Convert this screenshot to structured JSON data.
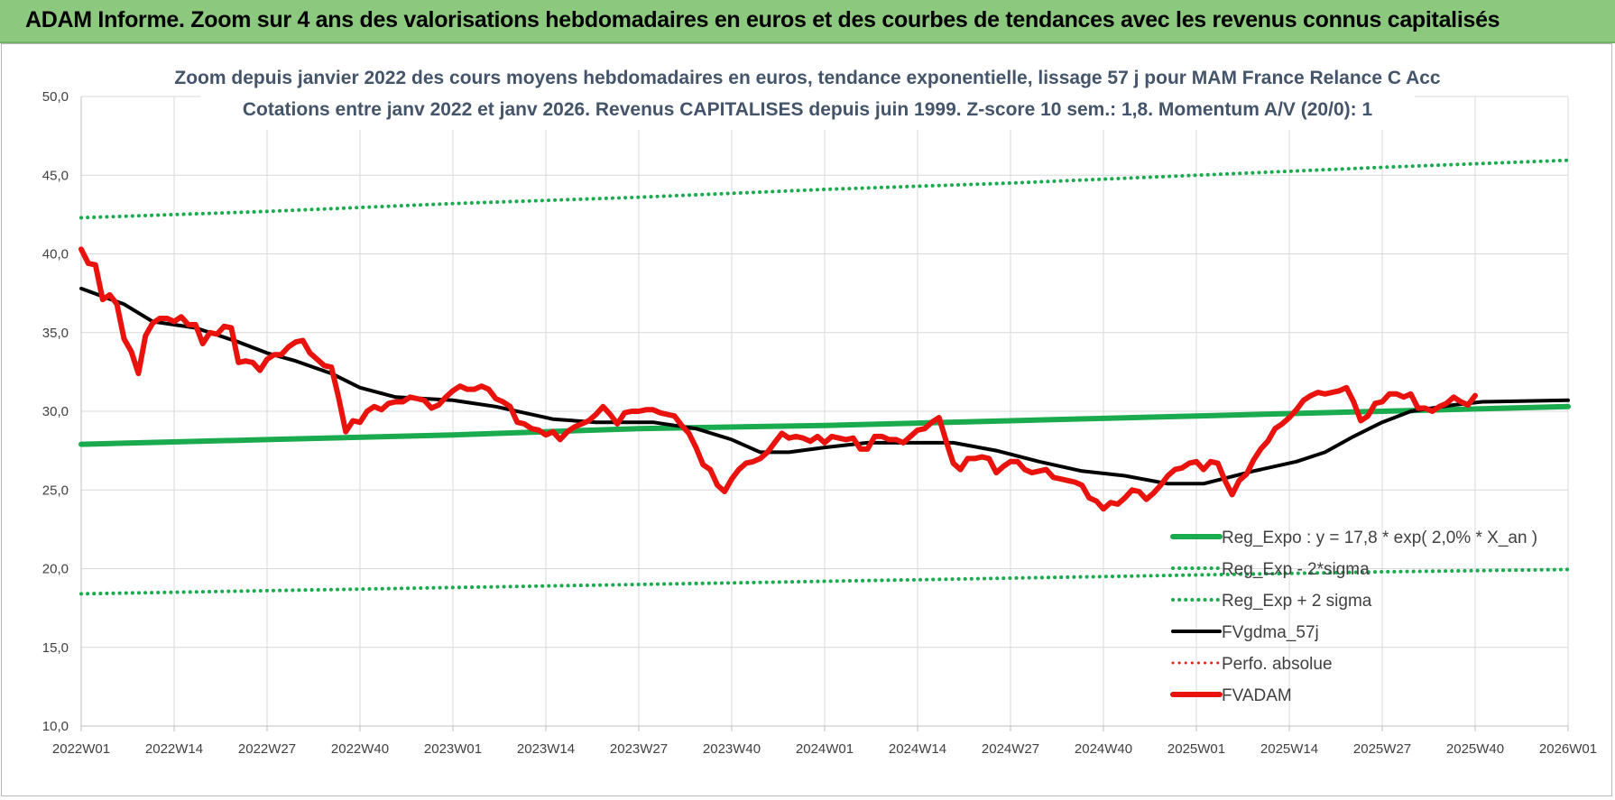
{
  "banner": {
    "title": "ADAM Informe. Zoom sur 4 ans des valorisations hebdomadaires en euros et des courbes de tendances avec les revenus connus capitalisés"
  },
  "chart_data": {
    "type": "line",
    "title": "Zoom depuis janvier 2022 des cours moyens hebdomadaires en euros, tendance exponentielle, lissage 57 j pour MAM France Relance C Acc",
    "subtitle": "Cotations entre janv 2022 et janv 2026. Revenus CAPITALISES depuis juin 1999. Z-score 10 sem.: 1,8. Momentum A/V (20/0): 1",
    "ylim": [
      10,
      50
    ],
    "xlim": [
      0,
      208
    ],
    "yticks": [
      "10,0",
      "15,0",
      "20,0",
      "25,0",
      "30,0",
      "35,0",
      "40,0",
      "45,0",
      "50,0"
    ],
    "xticks": [
      {
        "x": 0,
        "label": "2022W01"
      },
      {
        "x": 13,
        "label": "2022W14"
      },
      {
        "x": 26,
        "label": "2022W27"
      },
      {
        "x": 39,
        "label": "2022W40"
      },
      {
        "x": 52,
        "label": "2023W01"
      },
      {
        "x": 65,
        "label": "2023W14"
      },
      {
        "x": 78,
        "label": "2023W27"
      },
      {
        "x": 91,
        "label": "2023W40"
      },
      {
        "x": 104,
        "label": "2024W01"
      },
      {
        "x": 117,
        "label": "2024W14"
      },
      {
        "x": 130,
        "label": "2024W27"
      },
      {
        "x": 143,
        "label": "2024W40"
      },
      {
        "x": 156,
        "label": "2025W01"
      },
      {
        "x": 169,
        "label": "2025W14"
      },
      {
        "x": 182,
        "label": "2025W27"
      },
      {
        "x": 195,
        "label": "2025W40"
      },
      {
        "x": 208,
        "label": "2026W01"
      }
    ],
    "grid": true,
    "legend_position": "bottom-right",
    "series": [
      {
        "name": "Reg_Expo : y = 17,8 * exp( 2,0% *  X_an )",
        "color": "#1aab4f",
        "style": "solid",
        "width": 6,
        "points": [
          [
            0,
            27.9
          ],
          [
            26,
            28.2
          ],
          [
            52,
            28.5
          ],
          [
            78,
            28.9
          ],
          [
            104,
            29.1
          ],
          [
            130,
            29.4
          ],
          [
            156,
            29.7
          ],
          [
            182,
            30.0
          ],
          [
            208,
            30.3
          ]
        ]
      },
      {
        "name": "Reg_Exp - 2*sigma",
        "color": "#1aab4f",
        "style": "dotted",
        "width": 4,
        "points": [
          [
            0,
            18.4
          ],
          [
            26,
            18.6
          ],
          [
            52,
            18.8
          ],
          [
            78,
            19.0
          ],
          [
            104,
            19.2
          ],
          [
            130,
            19.4
          ],
          [
            156,
            19.6
          ],
          [
            182,
            19.8
          ],
          [
            208,
            19.95
          ]
        ]
      },
      {
        "name": "Reg_Exp + 2 sigma",
        "color": "#1aab4f",
        "style": "dotted",
        "width": 4,
        "points": [
          [
            0,
            42.3
          ],
          [
            26,
            42.7
          ],
          [
            52,
            43.2
          ],
          [
            78,
            43.6
          ],
          [
            104,
            44.1
          ],
          [
            130,
            44.5
          ],
          [
            156,
            45.0
          ],
          [
            182,
            45.5
          ],
          [
            208,
            45.95
          ]
        ]
      },
      {
        "name": "FVgdma_57j",
        "color": "#000000",
        "style": "solid",
        "width": 4,
        "points": [
          [
            0,
            37.8
          ],
          [
            6,
            36.8
          ],
          [
            10,
            35.7
          ],
          [
            16,
            35.3
          ],
          [
            22,
            34.4
          ],
          [
            26,
            33.7
          ],
          [
            30,
            33.2
          ],
          [
            35,
            32.4
          ],
          [
            39,
            31.5
          ],
          [
            44,
            30.9
          ],
          [
            52,
            30.7
          ],
          [
            58,
            30.3
          ],
          [
            66,
            29.5
          ],
          [
            72,
            29.3
          ],
          [
            80,
            29.3
          ],
          [
            86,
            28.9
          ],
          [
            91,
            28.2
          ],
          [
            95,
            27.4
          ],
          [
            99,
            27.4
          ],
          [
            104,
            27.7
          ],
          [
            110,
            28.0
          ],
          [
            122,
            28.0
          ],
          [
            128,
            27.5
          ],
          [
            134,
            26.8
          ],
          [
            140,
            26.2
          ],
          [
            146,
            25.9
          ],
          [
            152,
            25.4
          ],
          [
            157,
            25.4
          ],
          [
            164,
            26.2
          ],
          [
            170,
            26.8
          ],
          [
            174,
            27.4
          ],
          [
            178,
            28.4
          ],
          [
            182,
            29.3
          ],
          [
            186,
            30.0
          ],
          [
            192,
            30.4
          ],
          [
            196,
            30.6
          ],
          [
            208,
            30.7
          ]
        ]
      },
      {
        "name": "Perfo. absolue",
        "color": "#e1221a",
        "style": "dotted",
        "width": 3,
        "points": []
      },
      {
        "name": "FVADAM",
        "color": "#e9120d",
        "style": "solid",
        "width": 6,
        "points": [
          [
            0,
            40.3
          ],
          [
            1,
            39.4
          ],
          [
            2,
            39.3
          ],
          [
            3,
            37.1
          ],
          [
            4,
            37.4
          ],
          [
            5,
            36.8
          ],
          [
            6,
            34.6
          ],
          [
            7,
            33.8
          ],
          [
            8,
            32.4
          ],
          [
            9,
            34.8
          ],
          [
            10,
            35.6
          ],
          [
            11,
            35.9
          ],
          [
            12,
            35.9
          ],
          [
            13,
            35.7
          ],
          [
            14,
            36.0
          ],
          [
            15,
            35.5
          ],
          [
            16,
            35.5
          ],
          [
            17,
            34.3
          ],
          [
            18,
            35.0
          ],
          [
            19,
            34.9
          ],
          [
            20,
            35.4
          ],
          [
            21,
            35.3
          ],
          [
            22,
            33.1
          ],
          [
            23,
            33.2
          ],
          [
            24,
            33.1
          ],
          [
            25,
            32.6
          ],
          [
            26,
            33.3
          ],
          [
            27,
            33.6
          ],
          [
            28,
            33.6
          ],
          [
            29,
            34.1
          ],
          [
            30,
            34.4
          ],
          [
            31,
            34.5
          ],
          [
            32,
            33.7
          ],
          [
            33,
            33.3
          ],
          [
            34,
            32.9
          ],
          [
            35,
            32.8
          ],
          [
            36,
            30.9
          ],
          [
            37,
            28.7
          ],
          [
            38,
            29.4
          ],
          [
            39,
            29.3
          ],
          [
            40,
            30.0
          ],
          [
            41,
            30.3
          ],
          [
            42,
            30.1
          ],
          [
            43,
            30.5
          ],
          [
            44,
            30.6
          ],
          [
            45,
            30.6
          ],
          [
            46,
            30.9
          ],
          [
            47,
            30.8
          ],
          [
            48,
            30.7
          ],
          [
            49,
            30.2
          ],
          [
            50,
            30.4
          ],
          [
            51,
            30.9
          ],
          [
            52,
            31.3
          ],
          [
            53,
            31.6
          ],
          [
            54,
            31.4
          ],
          [
            55,
            31.4
          ],
          [
            56,
            31.6
          ],
          [
            57,
            31.4
          ],
          [
            58,
            30.8
          ],
          [
            59,
            30.6
          ],
          [
            60,
            30.3
          ],
          [
            61,
            29.3
          ],
          [
            62,
            29.2
          ],
          [
            63,
            28.9
          ],
          [
            64,
            28.8
          ],
          [
            65,
            28.5
          ],
          [
            66,
            28.7
          ],
          [
            67,
            28.2
          ],
          [
            68,
            28.7
          ],
          [
            69,
            29.0
          ],
          [
            70,
            29.2
          ],
          [
            71,
            29.4
          ],
          [
            72,
            29.8
          ],
          [
            73,
            30.3
          ],
          [
            74,
            29.8
          ],
          [
            75,
            29.2
          ],
          [
            76,
            29.9
          ],
          [
            77,
            30.0
          ],
          [
            78,
            30.0
          ],
          [
            79,
            30.1
          ],
          [
            80,
            30.1
          ],
          [
            81,
            29.9
          ],
          [
            82,
            29.8
          ],
          [
            83,
            29.7
          ],
          [
            84,
            29.1
          ],
          [
            85,
            28.6
          ],
          [
            86,
            27.7
          ],
          [
            87,
            26.6
          ],
          [
            88,
            26.3
          ],
          [
            89,
            25.3
          ],
          [
            90,
            24.9
          ],
          [
            91,
            25.7
          ],
          [
            92,
            26.3
          ],
          [
            93,
            26.7
          ],
          [
            94,
            26.8
          ],
          [
            95,
            27.0
          ],
          [
            96,
            27.4
          ],
          [
            97,
            28.0
          ],
          [
            98,
            28.6
          ],
          [
            99,
            28.3
          ],
          [
            100,
            28.4
          ],
          [
            101,
            28.3
          ],
          [
            102,
            28.1
          ],
          [
            103,
            28.4
          ],
          [
            104,
            28.0
          ],
          [
            105,
            28.4
          ],
          [
            106,
            28.3
          ],
          [
            107,
            28.2
          ],
          [
            108,
            28.3
          ],
          [
            109,
            27.6
          ],
          [
            110,
            27.6
          ],
          [
            111,
            28.4
          ],
          [
            112,
            28.4
          ],
          [
            113,
            28.2
          ],
          [
            114,
            28.2
          ],
          [
            115,
            28.0
          ],
          [
            116,
            28.4
          ],
          [
            117,
            28.8
          ],
          [
            118,
            28.9
          ],
          [
            119,
            29.3
          ],
          [
            120,
            29.6
          ],
          [
            121,
            28.1
          ],
          [
            122,
            26.7
          ],
          [
            123,
            26.3
          ],
          [
            124,
            27.0
          ],
          [
            125,
            27.0
          ],
          [
            126,
            27.1
          ],
          [
            127,
            27.0
          ],
          [
            128,
            26.1
          ],
          [
            129,
            26.5
          ],
          [
            130,
            26.8
          ],
          [
            131,
            26.8
          ],
          [
            132,
            26.3
          ],
          [
            133,
            26.1
          ],
          [
            134,
            26.2
          ],
          [
            135,
            26.3
          ],
          [
            136,
            25.8
          ],
          [
            137,
            25.7
          ],
          [
            138,
            25.6
          ],
          [
            139,
            25.5
          ],
          [
            140,
            25.3
          ],
          [
            141,
            24.5
          ],
          [
            142,
            24.3
          ],
          [
            143,
            23.8
          ],
          [
            144,
            24.2
          ],
          [
            145,
            24.1
          ],
          [
            146,
            24.5
          ],
          [
            147,
            25.0
          ],
          [
            148,
            24.9
          ],
          [
            149,
            24.4
          ],
          [
            150,
            24.8
          ],
          [
            151,
            25.3
          ],
          [
            152,
            25.9
          ],
          [
            153,
            26.3
          ],
          [
            154,
            26.4
          ],
          [
            155,
            26.7
          ],
          [
            156,
            26.8
          ],
          [
            157,
            26.3
          ],
          [
            158,
            26.8
          ],
          [
            159,
            26.7
          ],
          [
            160,
            25.6
          ],
          [
            161,
            24.7
          ],
          [
            162,
            25.6
          ],
          [
            163,
            26.0
          ],
          [
            164,
            26.9
          ],
          [
            165,
            27.6
          ],
          [
            166,
            28.1
          ],
          [
            167,
            28.9
          ],
          [
            168,
            29.2
          ],
          [
            169,
            29.6
          ],
          [
            170,
            30.1
          ],
          [
            171,
            30.7
          ],
          [
            172,
            31.0
          ],
          [
            173,
            31.2
          ],
          [
            174,
            31.1
          ],
          [
            175,
            31.2
          ],
          [
            176,
            31.3
          ],
          [
            177,
            31.5
          ],
          [
            178,
            30.6
          ],
          [
            179,
            29.4
          ],
          [
            180,
            29.7
          ],
          [
            181,
            30.5
          ],
          [
            182,
            30.6
          ],
          [
            183,
            31.1
          ],
          [
            184,
            31.1
          ],
          [
            185,
            30.9
          ],
          [
            186,
            31.1
          ],
          [
            187,
            30.2
          ],
          [
            188,
            30.2
          ],
          [
            189,
            30.0
          ],
          [
            190,
            30.3
          ],
          [
            191,
            30.5
          ],
          [
            192,
            30.9
          ],
          [
            193,
            30.6
          ],
          [
            194,
            30.4
          ],
          [
            195,
            31.0
          ]
        ]
      }
    ]
  }
}
